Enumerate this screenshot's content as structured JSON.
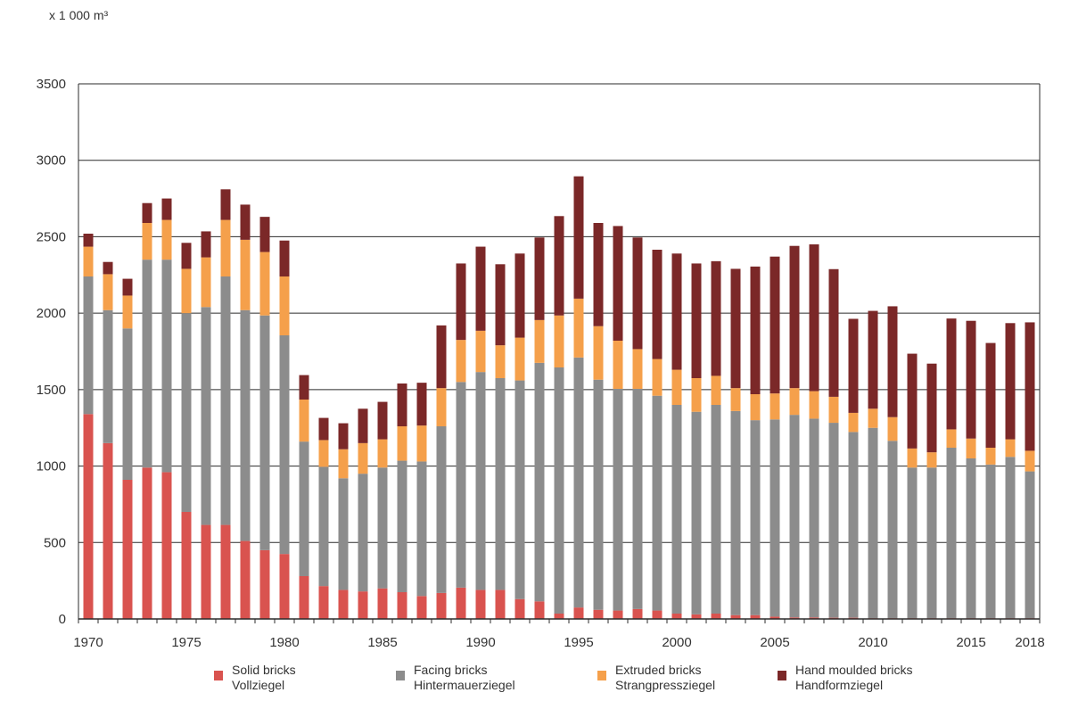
{
  "chart_data": {
    "type": "bar",
    "stacked": true,
    "unit_label": "x 1 000 m³",
    "title": "",
    "xlabel": "",
    "ylabel": "",
    "ylim": [
      0,
      3500
    ],
    "yticks": [
      0,
      500,
      1000,
      1500,
      2000,
      2500,
      3000,
      3500
    ],
    "xtick_labels": [
      "1970",
      "1975",
      "1980",
      "1985",
      "1990",
      "1995",
      "2000",
      "2005",
      "2010",
      "2015",
      "2018"
    ],
    "grid": "horizontal",
    "legend_position": "bottom",
    "categories": [
      1970,
      1971,
      1972,
      1973,
      1974,
      1975,
      1976,
      1977,
      1978,
      1979,
      1980,
      1981,
      1982,
      1983,
      1984,
      1985,
      1986,
      1987,
      1988,
      1989,
      1990,
      1991,
      1992,
      1993,
      1994,
      1995,
      1996,
      1997,
      1998,
      1999,
      2000,
      2001,
      2002,
      2003,
      2004,
      2005,
      2006,
      2007,
      2008,
      2009,
      2010,
      2011,
      2012,
      2013,
      2014,
      2015,
      2016,
      2017,
      2018
    ],
    "series": [
      {
        "name": "Solid bricks",
        "name_de": "Vollziegel",
        "color": "#d9534f",
        "values": [
          1340,
          1150,
          910,
          990,
          960,
          700,
          615,
          615,
          510,
          450,
          425,
          280,
          215,
          190,
          180,
          200,
          175,
          150,
          170,
          205,
          190,
          190,
          130,
          115,
          35,
          75,
          60,
          55,
          65,
          55,
          35,
          30,
          35,
          25,
          25,
          15,
          10,
          10,
          8,
          8,
          5,
          5,
          5,
          5,
          5,
          5,
          5,
          5,
          5
        ]
      },
      {
        "name": "Facing bricks",
        "name_de": "Hintermauerziegel",
        "color": "#8c8c8c",
        "values": [
          900,
          870,
          990,
          1360,
          1390,
          1300,
          1425,
          1625,
          1510,
          1535,
          1430,
          880,
          780,
          730,
          770,
          790,
          860,
          880,
          1090,
          1345,
          1425,
          1385,
          1430,
          1560,
          1610,
          1635,
          1505,
          1450,
          1440,
          1405,
          1365,
          1325,
          1365,
          1335,
          1275,
          1290,
          1325,
          1300,
          1275,
          1215,
          1245,
          1160,
          985,
          985,
          1115,
          1045,
          1005,
          1055,
          960
        ]
      },
      {
        "name": "Extruded bricks",
        "name_de": "Strangpressziegel",
        "color": "#f5a04b",
        "values": [
          195,
          235,
          215,
          240,
          260,
          290,
          325,
          370,
          460,
          415,
          385,
          275,
          175,
          190,
          200,
          185,
          225,
          235,
          250,
          275,
          270,
          215,
          280,
          280,
          340,
          385,
          350,
          315,
          260,
          240,
          230,
          220,
          190,
          150,
          170,
          170,
          175,
          180,
          170,
          125,
          125,
          155,
          125,
          100,
          120,
          130,
          110,
          115,
          135
        ]
      },
      {
        "name": "Hand moulded bricks",
        "name_de": "Handformziegel",
        "color": "#7b2828",
        "values": [
          85,
          80,
          110,
          130,
          140,
          170,
          170,
          200,
          230,
          230,
          235,
          160,
          145,
          170,
          225,
          245,
          280,
          280,
          410,
          500,
          550,
          530,
          550,
          540,
          650,
          800,
          675,
          750,
          730,
          715,
          760,
          750,
          750,
          780,
          835,
          895,
          930,
          960,
          835,
          615,
          640,
          725,
          620,
          580,
          725,
          770,
          685,
          760,
          840
        ]
      }
    ]
  }
}
